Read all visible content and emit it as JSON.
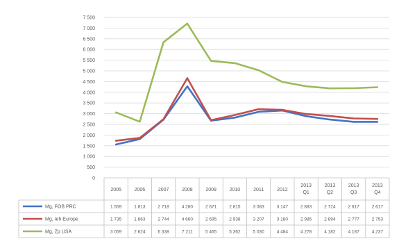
{
  "chart_data": {
    "type": "line",
    "categories": [
      [
        "2005"
      ],
      [
        "2006"
      ],
      [
        "2007"
      ],
      [
        "2008"
      ],
      [
        "2009"
      ],
      [
        "2010"
      ],
      [
        "2011"
      ],
      [
        "2012"
      ],
      [
        "2013",
        "Q1"
      ],
      [
        "2013",
        "Q2"
      ],
      [
        "2013",
        "Q3"
      ],
      [
        "2013",
        "Q4"
      ]
    ],
    "ylim": [
      0,
      7500
    ],
    "yticks": [
      "0",
      "500",
      "1 000",
      "1 500",
      "2 000",
      "2 500",
      "3 000",
      "3 500",
      "4 000",
      "4 500",
      "5 000",
      "5 500",
      "6 000",
      "6 500",
      "7 000",
      "7 500"
    ],
    "grid": true,
    "legend": "left, as data table row headers",
    "series": [
      {
        "name": "Mg, FOB PRC",
        "color": "#4472c4",
        "values": [
          1559,
          1813,
          2718,
          4280,
          2671,
          2815,
          3083,
          3147,
          2883,
          2724,
          2617,
          2617
        ],
        "labels": [
          "1 559",
          "1 813",
          "2 718",
          "4 280",
          "2 671",
          "2 815",
          "3 083",
          "3 147",
          "2 883",
          "2 724",
          "2 617",
          "2 617"
        ]
      },
      {
        "name": "Mg, Ieh Europe",
        "color": "#c0504d",
        "values": [
          1735,
          1863,
          2744,
          4660,
          2695,
          2938,
          3207,
          3180,
          2985,
          2894,
          2777,
          2753
        ],
        "labels": [
          "1 735",
          "1 863",
          "2 744",
          "4 660",
          "2 695",
          "2 938",
          "3 207",
          "3 180",
          "2 985",
          "2 894",
          "2 777",
          "2 753"
        ]
      },
      {
        "name": "Mg, Zp USA",
        "color": "#9bbb59",
        "values": [
          3059,
          2624,
          6338,
          7211,
          5465,
          5362,
          5030,
          4484,
          4278,
          4182,
          4187,
          4237
        ],
        "labels": [
          "3 059",
          "2 624",
          "6 338",
          "7 211",
          "5 465",
          "5 362",
          "5 030",
          "4 484",
          "4 278",
          "4 182",
          "4 187",
          "4 237"
        ]
      }
    ]
  }
}
